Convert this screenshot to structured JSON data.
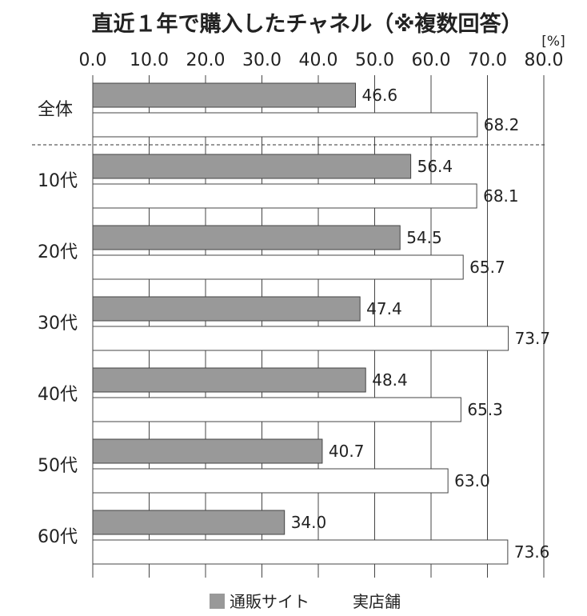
{
  "chart_data": {
    "type": "bar",
    "orientation": "horizontal",
    "title": "直近１年で購入したチャネル（※複数回答）",
    "unit_label": "[%]",
    "xlim": [
      0,
      80
    ],
    "xticks": [
      "0.0",
      "10.0",
      "20.0",
      "30.0",
      "40.0",
      "50.0",
      "60.0",
      "70.0",
      "80.0"
    ],
    "grid": true,
    "legend_position": "bottom",
    "categories": [
      "全体",
      "10代",
      "20代",
      "30代",
      "40代",
      "50代",
      "60代"
    ],
    "series": [
      {
        "name": "通販サイト",
        "color": "#999999",
        "values": [
          46.6,
          56.4,
          54.5,
          47.4,
          48.4,
          40.7,
          34.0
        ],
        "labels": [
          "46.6",
          "56.4",
          "54.5",
          "47.4",
          "48.4",
          "40.7",
          "34.0"
        ]
      },
      {
        "name": "実店舗",
        "color": "#ffffff",
        "values": [
          68.2,
          68.1,
          65.7,
          73.7,
          65.3,
          63.0,
          73.6
        ],
        "labels": [
          "68.2",
          "68.1",
          "65.7",
          "73.7",
          "65.3",
          "63.0",
          "73.6"
        ]
      }
    ]
  }
}
